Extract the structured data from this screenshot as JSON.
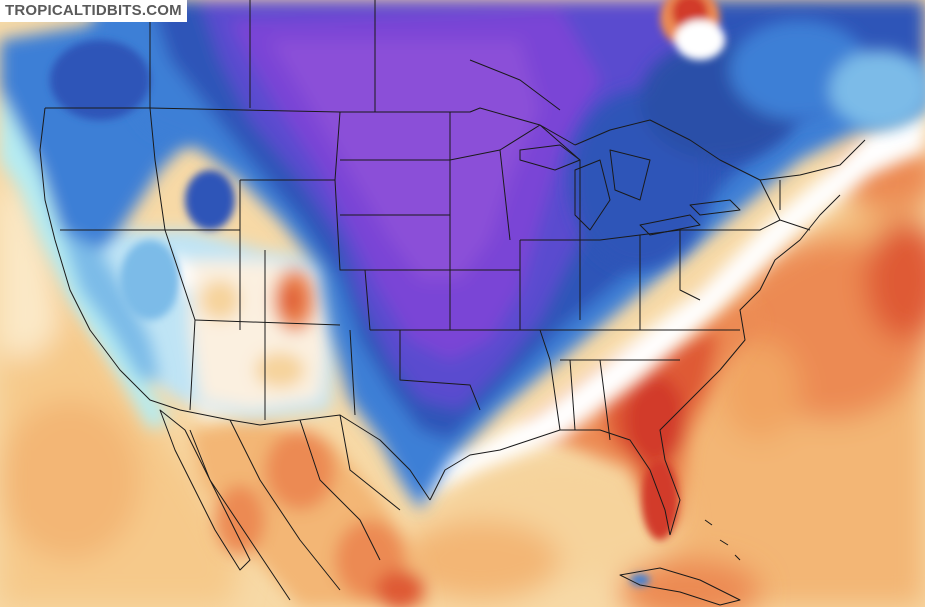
{
  "watermark": {
    "text": "TROPICALTIDBITS.COM"
  },
  "palette": {
    "deep_purple": "#8b4fd8",
    "purple": "#7a45d6",
    "indigo": "#5a4bcf",
    "dark_blue": "#2f55b8",
    "blue": "#3d7fd6",
    "light_blue": "#7bbbe8",
    "pale_blue": "#bfe4f5",
    "cyan": "#b5ecf2",
    "white": "#ffffff",
    "cream": "#fbe9c7",
    "tan": "#f6d39b",
    "light_orange": "#f3b675",
    "orange": "#ec8a52",
    "red_orange": "#df5a36",
    "red": "#d23a2a"
  }
}
